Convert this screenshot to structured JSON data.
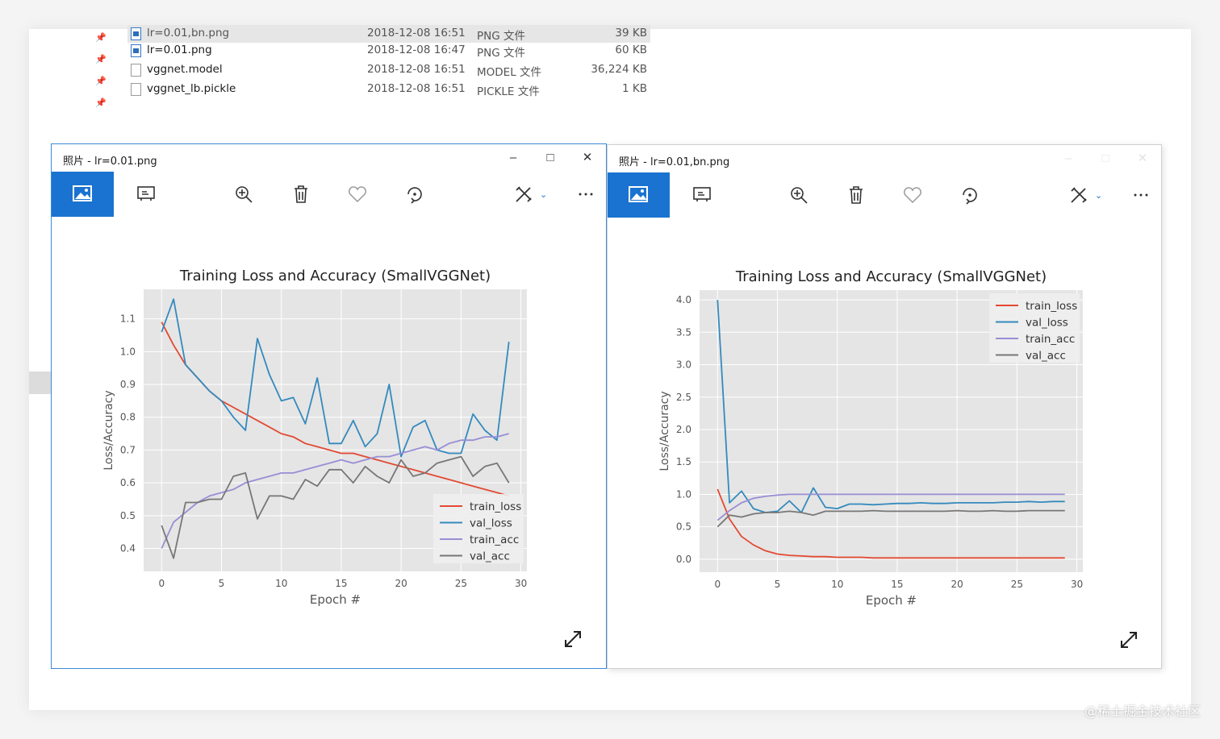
{
  "explorer": {
    "files": [
      {
        "name": "lr=0.01,bn.png",
        "date": "2018-12-08 16:51",
        "type": "PNG 文件",
        "size": "39 KB",
        "icon": "image-file-icon",
        "selected": true
      },
      {
        "name": "lr=0.01.png",
        "date": "2018-12-08 16:47",
        "type": "PNG 文件",
        "size": "60 KB",
        "icon": "image-file-icon",
        "selected": false
      },
      {
        "name": "vggnet.model",
        "date": "2018-12-08 16:51",
        "type": "MODEL 文件",
        "size": "36,224 KB",
        "icon": "file-icon",
        "selected": false
      },
      {
        "name": "vggnet_lb.pickle",
        "date": "2018-12-08 16:51",
        "type": "PICKLE 文件",
        "size": "1 KB",
        "icon": "file-icon",
        "selected": false
      }
    ]
  },
  "windows": [
    {
      "title": "照片 - lr=0.01.png",
      "active": true
    },
    {
      "title": "照片 - lr=0.01,bn.png",
      "active": false
    }
  ],
  "toolbar_icons": [
    "photo-icon",
    "slideshow-icon",
    "zoom-in-icon",
    "delete-icon",
    "favorite-icon",
    "rotate-icon",
    "edit-icon",
    "more-icon"
  ],
  "watermark": "@稀土掘金技术社区",
  "colors": {
    "accent": "#1a73d0",
    "train_loss": "#e24a33",
    "val_loss": "#348abd",
    "train_acc": "#988ed5",
    "val_acc": "#777777",
    "plot_bg": "#e5e5e5"
  },
  "chart_data": [
    {
      "type": "line",
      "title": "Training Loss and Accuracy (SmallVGGNet)",
      "xlabel": "Epoch #",
      "ylabel": "Loss/Accuracy",
      "xlim": [
        -1.5,
        30.5
      ],
      "ylim": [
        0.33,
        1.19
      ],
      "xticks": [
        0,
        5,
        10,
        15,
        20,
        25,
        30
      ],
      "yticks": [
        0.4,
        0.5,
        0.6,
        0.7,
        0.8,
        0.9,
        1.0,
        1.1
      ],
      "ytick_labels": [
        "0.4",
        "0.5",
        "0.6",
        "0.7",
        "0.8",
        "0.9",
        "1.0",
        "1.1"
      ],
      "grid": true,
      "legend_position": "lower-right",
      "x": [
        0,
        1,
        2,
        3,
        4,
        5,
        6,
        7,
        8,
        9,
        10,
        11,
        12,
        13,
        14,
        15,
        16,
        17,
        18,
        19,
        20,
        21,
        22,
        23,
        24,
        25,
        26,
        27,
        28,
        29
      ],
      "series": [
        {
          "name": "train_loss",
          "values": [
            1.09,
            1.02,
            0.96,
            0.92,
            0.88,
            0.85,
            0.83,
            0.81,
            0.79,
            0.77,
            0.75,
            0.74,
            0.72,
            0.71,
            0.7,
            0.69,
            0.69,
            0.68,
            0.67,
            0.66,
            0.65,
            0.64,
            0.63,
            0.62,
            0.61,
            0.6,
            0.59,
            0.58,
            0.57,
            0.56
          ]
        },
        {
          "name": "val_loss",
          "values": [
            1.06,
            1.16,
            0.96,
            0.92,
            0.88,
            0.85,
            0.8,
            0.76,
            1.04,
            0.93,
            0.85,
            0.86,
            0.78,
            0.92,
            0.72,
            0.72,
            0.79,
            0.71,
            0.75,
            0.9,
            0.68,
            0.77,
            0.79,
            0.7,
            0.69,
            0.69,
            0.81,
            0.76,
            0.73,
            1.03
          ]
        },
        {
          "name": "train_acc",
          "values": [
            0.4,
            0.48,
            0.51,
            0.54,
            0.56,
            0.57,
            0.58,
            0.6,
            0.61,
            0.62,
            0.63,
            0.63,
            0.64,
            0.65,
            0.66,
            0.67,
            0.66,
            0.67,
            0.68,
            0.68,
            0.69,
            0.7,
            0.71,
            0.7,
            0.72,
            0.73,
            0.73,
            0.74,
            0.74,
            0.75
          ]
        },
        {
          "name": "val_acc",
          "values": [
            0.47,
            0.37,
            0.54,
            0.54,
            0.55,
            0.55,
            0.62,
            0.63,
            0.49,
            0.56,
            0.56,
            0.55,
            0.61,
            0.59,
            0.64,
            0.64,
            0.6,
            0.65,
            0.62,
            0.6,
            0.67,
            0.62,
            0.63,
            0.66,
            0.67,
            0.68,
            0.62,
            0.65,
            0.66,
            0.6
          ]
        }
      ]
    },
    {
      "type": "line",
      "title": "Training Loss and Accuracy (SmallVGGNet)",
      "xlabel": "Epoch #",
      "ylabel": "Loss/Accuracy",
      "xlim": [
        -1.5,
        30.5
      ],
      "ylim": [
        -0.2,
        4.15
      ],
      "xticks": [
        0,
        5,
        10,
        15,
        20,
        25,
        30
      ],
      "yticks": [
        0.0,
        0.5,
        1.0,
        1.5,
        2.0,
        2.5,
        3.0,
        3.5,
        4.0
      ],
      "ytick_labels": [
        "0.0",
        "0.5",
        "1.0",
        "1.5",
        "2.0",
        "2.5",
        "3.0",
        "3.5",
        "4.0"
      ],
      "grid": true,
      "legend_position": "top-right",
      "x": [
        0,
        1,
        2,
        3,
        4,
        5,
        6,
        7,
        8,
        9,
        10,
        11,
        12,
        13,
        14,
        15,
        16,
        17,
        18,
        19,
        20,
        21,
        22,
        23,
        24,
        25,
        26,
        27,
        28,
        29
      ],
      "series": [
        {
          "name": "train_loss",
          "values": [
            1.08,
            0.62,
            0.35,
            0.22,
            0.13,
            0.08,
            0.06,
            0.05,
            0.04,
            0.04,
            0.03,
            0.03,
            0.03,
            0.02,
            0.02,
            0.02,
            0.02,
            0.02,
            0.02,
            0.02,
            0.02,
            0.02,
            0.02,
            0.02,
            0.02,
            0.02,
            0.02,
            0.02,
            0.02,
            0.02
          ]
        },
        {
          "name": "val_loss",
          "values": [
            4.0,
            0.87,
            1.05,
            0.78,
            0.72,
            0.74,
            0.9,
            0.72,
            1.1,
            0.8,
            0.78,
            0.85,
            0.85,
            0.84,
            0.85,
            0.86,
            0.86,
            0.87,
            0.86,
            0.86,
            0.87,
            0.87,
            0.87,
            0.87,
            0.88,
            0.88,
            0.89,
            0.88,
            0.89,
            0.89
          ]
        },
        {
          "name": "train_acc",
          "values": [
            0.6,
            0.75,
            0.87,
            0.94,
            0.97,
            0.99,
            1.0,
            1.0,
            1.0,
            1.0,
            1.0,
            1.0,
            1.0,
            1.0,
            1.0,
            1.0,
            1.0,
            1.0,
            1.0,
            1.0,
            1.0,
            1.0,
            1.0,
            1.0,
            1.0,
            1.0,
            1.0,
            1.0,
            1.0,
            1.0
          ]
        },
        {
          "name": "val_acc",
          "values": [
            0.5,
            0.68,
            0.65,
            0.7,
            0.72,
            0.72,
            0.74,
            0.72,
            0.68,
            0.74,
            0.74,
            0.74,
            0.74,
            0.75,
            0.74,
            0.74,
            0.74,
            0.74,
            0.74,
            0.74,
            0.75,
            0.74,
            0.74,
            0.75,
            0.74,
            0.74,
            0.75,
            0.75,
            0.75,
            0.75
          ]
        }
      ]
    }
  ]
}
